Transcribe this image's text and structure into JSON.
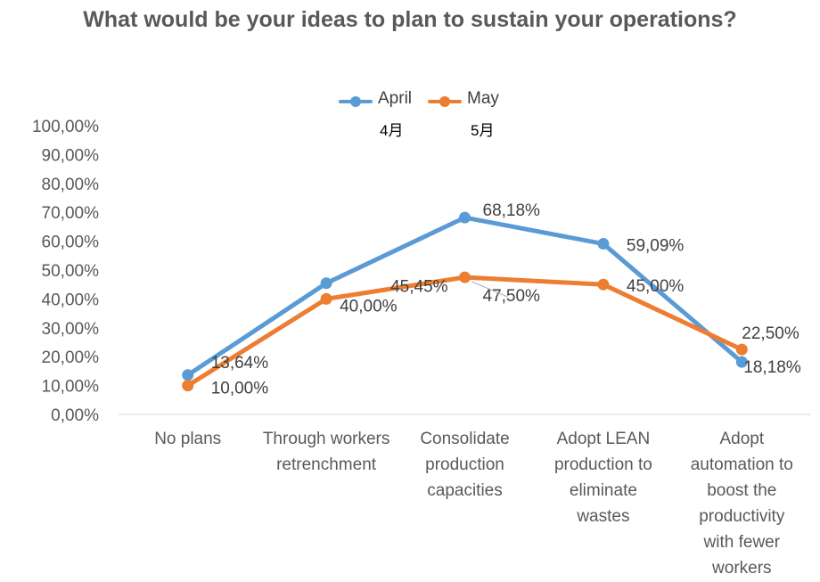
{
  "title": "What would be your ideas to plan to sustain your operations?",
  "legend": [
    {
      "name": "April",
      "sub": "4月",
      "color": "#5b9bd5"
    },
    {
      "name": "May",
      "sub": "5月",
      "color": "#ed7d31"
    }
  ],
  "chart_data": {
    "type": "line",
    "title": "What would be your ideas to plan to sustain your operations?",
    "categories": [
      "No plans",
      "Through workers retrenchment",
      "Consolidate production capacities",
      "Adopt LEAN production to eliminate wastes",
      "Adopt automation to boost the productivity with fewer workers"
    ],
    "series": [
      {
        "name": "April",
        "values": [
          13.64,
          45.45,
          68.18,
          59.09,
          18.18
        ],
        "labels": [
          "13,64%",
          "45,45%",
          "68,18%",
          "59,09%",
          "18,18%"
        ],
        "color": "#5b9bd5"
      },
      {
        "name": "May",
        "values": [
          10.0,
          40.0,
          47.5,
          45.0,
          22.5
        ],
        "labels": [
          "10,00%",
          "40,00%",
          "47,50%",
          "45,00%",
          "22,50%"
        ],
        "color": "#ed7d31"
      }
    ],
    "ylim": [
      0,
      100
    ],
    "yticks": [
      "0,00%",
      "10,00%",
      "20,00%",
      "30,00%",
      "40,00%",
      "50,00%",
      "60,00%",
      "70,00%",
      "80,00%",
      "90,00%",
      "100,00%"
    ],
    "grid": false,
    "legend_position": "top"
  }
}
